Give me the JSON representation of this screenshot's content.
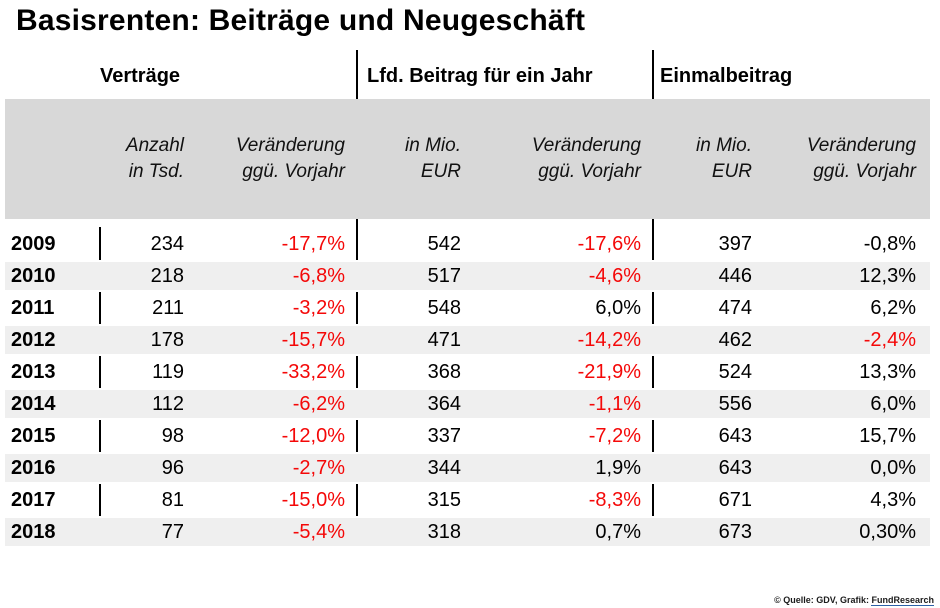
{
  "title": "Basisrenten: Beiträge und Neugeschäft",
  "colors": {
    "negative_red": "#f40808",
    "header_band": "#d8d8d8",
    "row_stripe": "#efefef",
    "footer_link_underline": "#2d61a8"
  },
  "groups": [
    {
      "label": "Verträge"
    },
    {
      "label": "Lfd. Beitrag für ein Jahr"
    },
    {
      "label": "Einmalbeitrag"
    }
  ],
  "subheaders": [
    {
      "line1": "Anzahl",
      "line2": "in Tsd."
    },
    {
      "line1": "Veränderung",
      "line2": "ggü. Vorjahr"
    },
    {
      "line1": "in Mio.",
      "line2": "EUR"
    },
    {
      "line1": "Veränderung",
      "line2": "ggü. Vorjahr"
    },
    {
      "line1": "in Mio.",
      "line2": "EUR"
    },
    {
      "line1": "Veränderung",
      "line2": "ggü. Vorjahr"
    }
  ],
  "table": {
    "rows": [
      {
        "year": "2009",
        "cells": [
          {
            "t": "234"
          },
          {
            "t": "-17,7%",
            "red": true
          },
          {
            "t": "542"
          },
          {
            "t": "-17,6%",
            "red": true
          },
          {
            "t": "397"
          },
          {
            "t": "-0,8%"
          }
        ]
      },
      {
        "year": "2010",
        "cells": [
          {
            "t": "218"
          },
          {
            "t": "-6,8%",
            "red": true
          },
          {
            "t": "517"
          },
          {
            "t": "-4,6%",
            "red": true
          },
          {
            "t": "446"
          },
          {
            "t": "12,3%"
          }
        ]
      },
      {
        "year": "2011",
        "cells": [
          {
            "t": "211"
          },
          {
            "t": "-3,2%",
            "red": true
          },
          {
            "t": "548"
          },
          {
            "t": "6,0%"
          },
          {
            "t": "474"
          },
          {
            "t": "6,2%"
          }
        ]
      },
      {
        "year": "2012",
        "cells": [
          {
            "t": "178"
          },
          {
            "t": "-15,7%",
            "red": true
          },
          {
            "t": "471"
          },
          {
            "t": "-14,2%",
            "red": true
          },
          {
            "t": "462"
          },
          {
            "t": "-2,4%",
            "red": true
          }
        ]
      },
      {
        "year": "2013",
        "cells": [
          {
            "t": "119"
          },
          {
            "t": "-33,2%",
            "red": true
          },
          {
            "t": "368"
          },
          {
            "t": "-21,9%",
            "red": true
          },
          {
            "t": "524"
          },
          {
            "t": "13,3%"
          }
        ]
      },
      {
        "year": "2014",
        "cells": [
          {
            "t": "112"
          },
          {
            "t": "-6,2%",
            "red": true
          },
          {
            "t": "364"
          },
          {
            "t": "-1,1%",
            "red": true
          },
          {
            "t": "556"
          },
          {
            "t": "6,0%"
          }
        ]
      },
      {
        "year": "2015",
        "cells": [
          {
            "t": "98"
          },
          {
            "t": "-12,0%",
            "red": true
          },
          {
            "t": "337"
          },
          {
            "t": "-7,2%",
            "red": true
          },
          {
            "t": "643"
          },
          {
            "t": "15,7%"
          }
        ]
      },
      {
        "year": "2016",
        "cells": [
          {
            "t": "96"
          },
          {
            "t": "-2,7%",
            "red": true
          },
          {
            "t": "344"
          },
          {
            "t": "1,9%"
          },
          {
            "t": "643"
          },
          {
            "t": "0,0%"
          }
        ]
      },
      {
        "year": "2017",
        "cells": [
          {
            "t": "81"
          },
          {
            "t": "-15,0%",
            "red": true
          },
          {
            "t": "315"
          },
          {
            "t": "-8,3%",
            "red": true
          },
          {
            "t": "671"
          },
          {
            "t": "4,3%"
          }
        ]
      },
      {
        "year": "2018",
        "cells": [
          {
            "t": "77"
          },
          {
            "t": "-5,4%",
            "red": true
          },
          {
            "t": "318"
          },
          {
            "t": "0,7%"
          },
          {
            "t": "673"
          },
          {
            "t": "0,30%"
          }
        ]
      }
    ]
  },
  "footer": {
    "prefix": "© Quelle: GDV, Grafik: ",
    "link": "FundResearch"
  },
  "chart_data": {
    "type": "table",
    "title": "Basisrenten: Beiträge und Neugeschäft",
    "categories": [
      "2009",
      "2010",
      "2011",
      "2012",
      "2013",
      "2014",
      "2015",
      "2016",
      "2017",
      "2018"
    ],
    "series": [
      {
        "name": "Verträge – Anzahl in Tsd.",
        "values": [
          234,
          218,
          211,
          178,
          119,
          112,
          98,
          96,
          81,
          77
        ]
      },
      {
        "name": "Verträge – Veränderung ggü. Vorjahr (%)",
        "values": [
          -17.7,
          -6.8,
          -3.2,
          -15.7,
          -33.2,
          -6.2,
          -12.0,
          -2.7,
          -15.0,
          -5.4
        ]
      },
      {
        "name": "Lfd. Beitrag für ein Jahr – in Mio. EUR",
        "values": [
          542,
          517,
          548,
          471,
          368,
          364,
          337,
          344,
          315,
          318
        ]
      },
      {
        "name": "Lfd. Beitrag für ein Jahr – Veränderung ggü. Vorjahr (%)",
        "values": [
          -17.6,
          -4.6,
          6.0,
          -14.2,
          -21.9,
          -1.1,
          -7.2,
          1.9,
          -8.3,
          0.7
        ]
      },
      {
        "name": "Einmalbeitrag – in Mio. EUR",
        "values": [
          397,
          446,
          474,
          462,
          524,
          556,
          643,
          643,
          671,
          673
        ]
      },
      {
        "name": "Einmalbeitrag – Veränderung ggü. Vorjahr (%)",
        "values": [
          -0.8,
          12.3,
          6.2,
          -2.4,
          13.3,
          6.0,
          15.7,
          0.0,
          4.3,
          0.3
        ]
      }
    ],
    "layout": {
      "negative_values_highlighted_red": true,
      "striped_rows": true,
      "legend_position": "none",
      "grid": "off"
    }
  }
}
